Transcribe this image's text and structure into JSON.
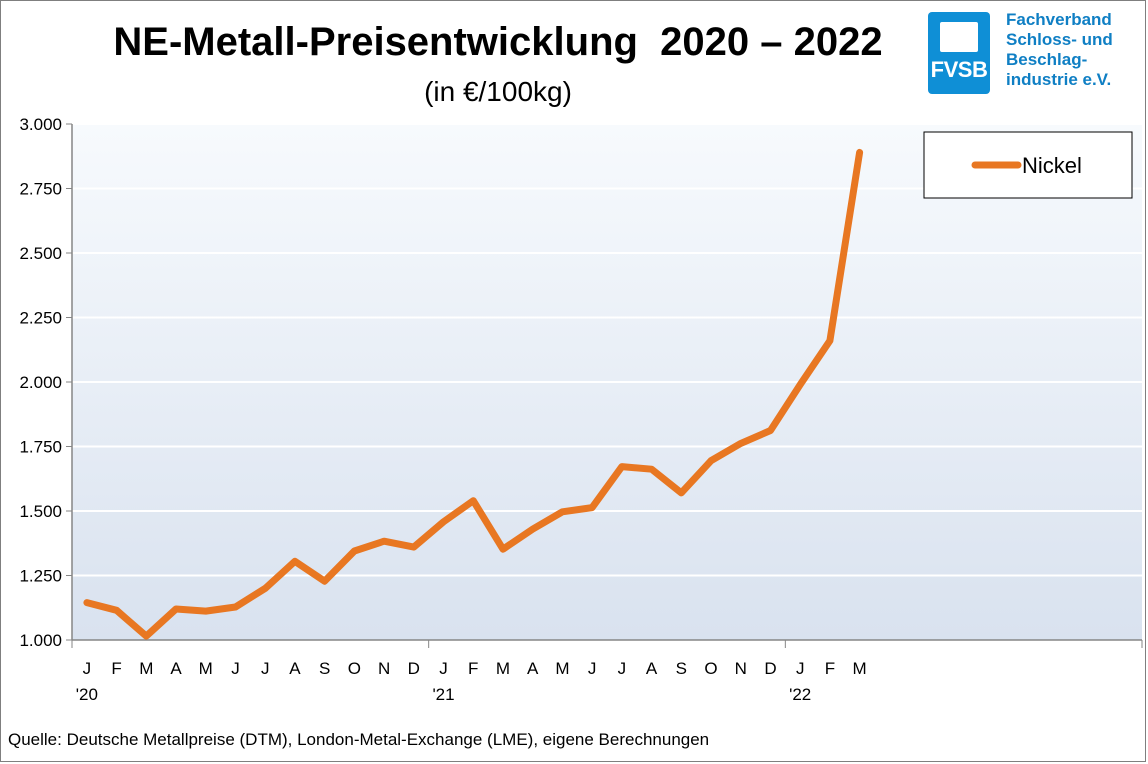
{
  "title": "NE-Metall-Preisentwicklung  2020 – 2022",
  "subtitle": "(in €/100kg)",
  "logo": {
    "abbr": "FVSB",
    "lines": [
      "Fachverband",
      "Schloss- und",
      "Beschlag-",
      "industrie e.V."
    ],
    "color": "#0f8fd6"
  },
  "source": "Quelle: Deutsche Metallpreise (DTM), London-Metal-Exchange (LME), eigene Berechnungen",
  "chart_data": {
    "type": "line",
    "title": "NE-Metall-Preisentwicklung  2020 – 2022",
    "subtitle": "(in €/100kg)",
    "categories": [
      "J",
      "F",
      "M",
      "A",
      "M",
      "J",
      "J",
      "A",
      "S",
      "O",
      "N",
      "D",
      "J",
      "F",
      "M",
      "A",
      "M",
      "J",
      "J",
      "A",
      "S",
      "O",
      "N",
      "D",
      "J",
      "F",
      "M"
    ],
    "year_labels": [
      {
        "index": 0,
        "label": "'20"
      },
      {
        "index": 12,
        "label": "'21"
      },
      {
        "index": 24,
        "label": "'22"
      }
    ],
    "ylim": [
      1000,
      3000
    ],
    "yticks": [
      1000,
      1250,
      1500,
      1750,
      2000,
      2250,
      2500,
      2750,
      3000
    ],
    "ytick_labels": [
      "1.000",
      "1.250",
      "1.500",
      "1.750",
      "2.000",
      "2.250",
      "2.500",
      "2.750",
      "3.000"
    ],
    "total_slots": 36,
    "grid": true,
    "legend_position": "top-right",
    "series": [
      {
        "name": "Nickel",
        "color": "#e87722",
        "values": [
          1145,
          1115,
          1015,
          1120,
          1112,
          1128,
          1200,
          1305,
          1228,
          1345,
          1383,
          1360,
          1458,
          1540,
          1352,
          1430,
          1497,
          1513,
          1672,
          1662,
          1570,
          1695,
          1762,
          1812,
          1990,
          2160,
          2890
        ]
      }
    ]
  }
}
